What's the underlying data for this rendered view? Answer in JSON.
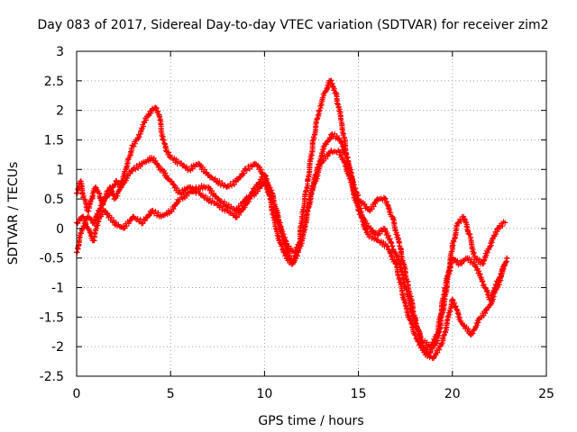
{
  "chart_data": {
    "type": "scatter",
    "title": "Day 083 of 2017, Sidereal Day-to-day VTEC variation (SDTVAR) for receiver zim2",
    "xlabel": "GPS time / hours",
    "ylabel": "SDTVAR / TECUs",
    "xlim": [
      0,
      25
    ],
    "ylim": [
      -2.5,
      3
    ],
    "x_ticks": [
      "0",
      "5",
      "10",
      "15",
      "20",
      "25"
    ],
    "y_ticks": [
      "-2.5",
      "-2",
      "-1.5",
      "-1",
      "-0.5",
      "0",
      "0.5",
      "1",
      "1.5",
      "2",
      "2.5",
      "3"
    ],
    "grid": true,
    "marker": "plus",
    "series_color": "#ff0000",
    "series": [
      {
        "x": [
          0.0,
          0.2,
          0.4,
          0.6,
          0.8,
          1.0,
          1.2,
          1.4,
          1.6,
          1.8,
          2.0,
          2.2,
          2.4,
          2.6,
          2.8,
          3.0,
          3.2,
          3.4,
          3.6,
          3.8,
          4.0,
          4.2,
          4.4,
          4.6,
          4.8,
          5.0,
          5.5,
          6.0,
          6.5,
          7.0,
          7.5,
          8.0,
          8.5,
          9.0,
          9.5,
          10.0,
          10.3,
          10.6,
          10.9,
          11.2,
          11.5,
          11.8,
          12.0,
          12.3,
          12.6,
          12.9,
          13.2,
          13.5,
          13.8,
          14.1,
          14.4,
          14.7,
          15.0,
          15.3,
          15.6,
          16.0,
          16.4,
          16.8,
          17.2,
          17.6,
          18.0,
          18.4,
          18.8,
          19.2,
          19.6,
          20.0,
          20.3,
          20.6,
          20.9,
          21.2,
          21.6,
          22.0,
          22.4,
          22.8
        ],
        "y": [
          0.6,
          0.8,
          0.5,
          0.3,
          0.5,
          0.7,
          0.6,
          0.4,
          0.6,
          0.7,
          0.5,
          0.6,
          0.8,
          1.0,
          1.2,
          1.4,
          1.5,
          1.6,
          1.8,
          1.9,
          2.0,
          2.05,
          1.9,
          1.5,
          1.3,
          1.2,
          1.1,
          1.0,
          1.1,
          0.9,
          0.8,
          0.7,
          0.8,
          1.0,
          1.1,
          0.9,
          0.5,
          0.0,
          -0.3,
          -0.5,
          -0.6,
          -0.4,
          0.2,
          0.8,
          1.5,
          2.0,
          2.3,
          2.5,
          2.3,
          1.8,
          1.2,
          0.8,
          0.5,
          0.4,
          0.3,
          0.5,
          0.5,
          0.2,
          -0.3,
          -0.9,
          -1.5,
          -2.0,
          -2.1,
          -1.9,
          -1.2,
          -0.3,
          0.1,
          0.2,
          -0.1,
          -0.5,
          -0.6,
          -0.3,
          0.0,
          0.1
        ]
      },
      {
        "x": [
          0.0,
          0.3,
          0.6,
          0.9,
          1.2,
          1.5,
          1.8,
          2.1,
          2.4,
          2.7,
          3.0,
          3.5,
          4.0,
          4.5,
          5.0,
          5.5,
          6.0,
          6.5,
          7.0,
          7.5,
          8.0,
          8.5,
          9.0,
          9.5,
          10.0,
          10.4,
          10.8,
          11.2,
          11.6,
          12.0,
          12.4,
          12.8,
          13.2,
          13.6,
          14.0,
          14.4,
          14.8,
          15.2,
          15.6,
          16.0,
          16.4,
          16.8,
          17.2,
          17.6,
          18.0,
          18.4,
          18.8,
          19.2,
          19.6,
          20.0,
          20.4,
          20.8,
          21.2,
          21.6,
          22.0,
          22.4,
          22.8
        ],
        "y": [
          -0.4,
          0.0,
          0.2,
          0.1,
          0.3,
          0.5,
          0.6,
          0.8,
          0.7,
          0.9,
          1.0,
          1.1,
          1.2,
          1.0,
          0.8,
          0.6,
          0.7,
          0.6,
          0.5,
          0.4,
          0.3,
          0.2,
          0.4,
          0.7,
          0.9,
          0.6,
          0.1,
          -0.3,
          -0.4,
          -0.2,
          0.5,
          1.0,
          1.4,
          1.6,
          1.5,
          1.2,
          0.6,
          0.2,
          0.0,
          -0.1,
          0.0,
          -0.3,
          -0.6,
          -1.1,
          -1.6,
          -1.9,
          -2.0,
          -1.8,
          -1.0,
          -0.5,
          -0.6,
          -0.5,
          -0.6,
          -0.9,
          -1.2,
          -0.9,
          -0.6
        ]
      },
      {
        "x": [
          0.0,
          0.3,
          0.6,
          0.9,
          1.2,
          1.5,
          2.0,
          2.5,
          3.0,
          3.5,
          4.0,
          4.5,
          5.0,
          5.5,
          6.0,
          6.5,
          7.0,
          7.5,
          8.0,
          8.5,
          9.0,
          9.5,
          10.0,
          10.5,
          11.0,
          11.5,
          12.0,
          12.5,
          13.0,
          13.5,
          14.0,
          14.5,
          15.0,
          15.5,
          16.0,
          16.5,
          17.0,
          17.5,
          18.0,
          18.5,
          19.0,
          19.5,
          20.0,
          20.5,
          21.0,
          21.5,
          22.0,
          22.5,
          22.9
        ],
        "y": [
          0.1,
          0.2,
          0.0,
          -0.2,
          0.2,
          0.3,
          0.1,
          0.0,
          0.2,
          0.1,
          0.3,
          0.2,
          0.3,
          0.5,
          0.6,
          0.7,
          0.7,
          0.5,
          0.4,
          0.3,
          0.5,
          0.6,
          0.8,
          0.4,
          -0.2,
          -0.6,
          -0.2,
          0.6,
          1.1,
          1.3,
          1.3,
          0.9,
          0.3,
          -0.1,
          -0.2,
          -0.3,
          -0.6,
          -1.3,
          -1.8,
          -2.1,
          -2.2,
          -1.9,
          -1.2,
          -1.6,
          -1.8,
          -1.5,
          -1.3,
          -0.9,
          -0.5
        ]
      }
    ]
  }
}
